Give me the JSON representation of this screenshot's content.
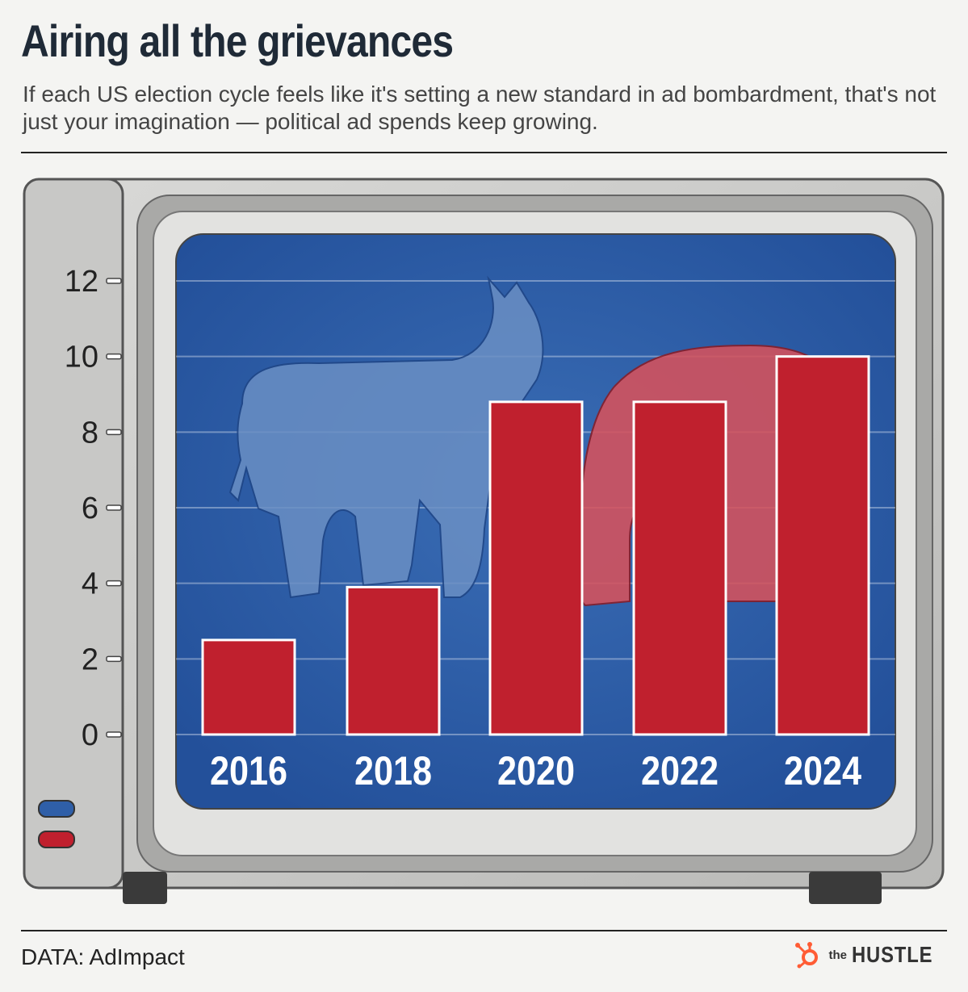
{
  "header": {
    "title": "Airing all the grievances",
    "subtitle": "If each US election cycle feels like it's setting a new standard in ad bombardment, that's not just your imagination — political ad spends keep growing."
  },
  "footer": {
    "source": "DATA: AdImpact",
    "brand_the": "the",
    "brand_name": "HUSTLE",
    "brand_icon": "hubspot-sprocket-icon"
  },
  "colors": {
    "screen_blue": "#2f5fa8",
    "bar_red": "#c0202e",
    "donkey_blue": "#6a8fc4",
    "elephant_red": "#d6525c",
    "accent_orange": "#ff5c35"
  },
  "chart_data": {
    "type": "bar",
    "categories": [
      "2016",
      "2018",
      "2020",
      "2022",
      "2024"
    ],
    "values": [
      2.5,
      3.9,
      8.8,
      8.8,
      10.0
    ],
    "y_ticks": [
      "0",
      "2",
      "4",
      "6",
      "8",
      "10",
      "12"
    ],
    "ylim": [
      0,
      12
    ],
    "grid": true
  }
}
